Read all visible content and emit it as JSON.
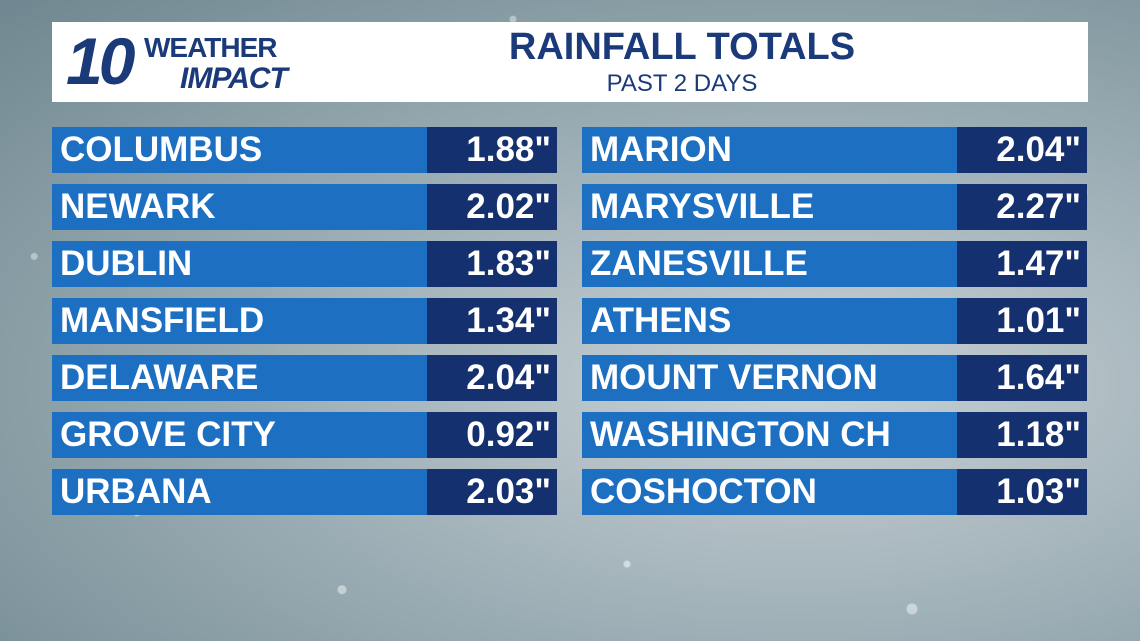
{
  "logo": {
    "number": "10",
    "line1": "WEATHER",
    "line2": "IMPACT"
  },
  "header": {
    "title": "RAINFALL TOTALS",
    "subtitle": "PAST 2 DAYS"
  },
  "table": {
    "columns": [
      {
        "rows": [
          [
            "COLUMBUS",
            "1.88\""
          ],
          [
            "NEWARK",
            "2.02\""
          ],
          [
            "DUBLIN",
            "1.83\""
          ],
          [
            "MANSFIELD",
            "1.34\""
          ],
          [
            "DELAWARE",
            "2.04\""
          ],
          [
            "GROVE CITY",
            "0.92\""
          ],
          [
            "URBANA",
            "2.03\""
          ]
        ]
      },
      {
        "rows": [
          [
            "MARION",
            "2.04\""
          ],
          [
            "MARYSVILLE",
            "2.27\""
          ],
          [
            "ZANESVILLE",
            "1.47\""
          ],
          [
            "ATHENS",
            "1.01\""
          ],
          [
            "MOUNT VERNON",
            "1.64\""
          ],
          [
            "WASHINGTON CH",
            "1.18\""
          ],
          [
            "COSHOCTON",
            "1.03\""
          ]
        ]
      }
    ]
  }
}
